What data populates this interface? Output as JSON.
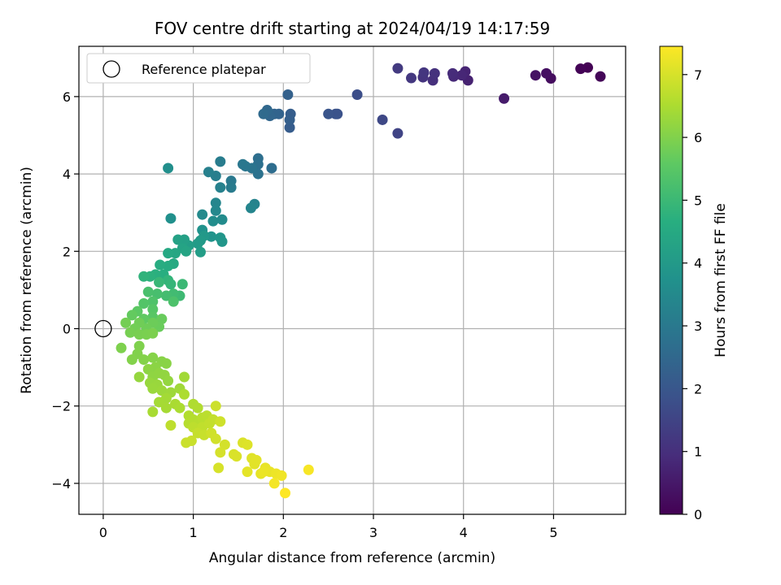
{
  "chart_data": {
    "type": "scatter",
    "title": "FOV centre drift starting at 2024/04/19 14:17:59",
    "xlabel": "Angular distance from reference (arcmin)",
    "ylabel": "Rotation from reference (arcmin)",
    "xlim": [
      -0.27,
      5.8
    ],
    "ylim": [
      -4.8,
      7.3
    ],
    "xticks": [
      0,
      1,
      2,
      3,
      4,
      5
    ],
    "yticks": [
      -4,
      -2,
      0,
      2,
      4,
      6
    ],
    "grid": true,
    "legend": {
      "position": "top-left",
      "label": "Reference platepar"
    },
    "reference_point": {
      "x": 0,
      "y": 0
    },
    "colorbar": {
      "label": "Hours from first FF file",
      "range": [
        0,
        7.45
      ],
      "ticks": [
        0,
        1,
        2,
        3,
        4,
        5,
        6,
        7
      ],
      "colormap": "viridis"
    },
    "series": [
      {
        "points": [
          [
            5.38,
            6.75,
            0.0
          ],
          [
            5.3,
            6.72,
            0.05
          ],
          [
            5.52,
            6.52,
            0.1
          ],
          [
            4.97,
            6.47,
            0.25
          ],
          [
            4.92,
            6.6,
            0.3
          ],
          [
            4.8,
            6.55,
            0.35
          ],
          [
            4.45,
            5.95,
            0.55
          ],
          [
            4.05,
            6.42,
            0.7
          ],
          [
            4.02,
            6.65,
            0.75
          ],
          [
            3.98,
            6.55,
            0.8
          ],
          [
            3.89,
            6.52,
            0.85
          ],
          [
            3.88,
            6.6,
            0.9
          ],
          [
            3.66,
            6.42,
            1.0
          ],
          [
            3.68,
            6.6,
            1.05
          ],
          [
            3.55,
            6.5,
            1.1
          ],
          [
            3.56,
            6.62,
            1.15
          ],
          [
            3.42,
            6.48,
            1.2
          ],
          [
            3.27,
            6.73,
            1.25
          ],
          [
            3.27,
            5.05,
            1.5
          ],
          [
            3.1,
            5.4,
            1.6
          ],
          [
            2.82,
            6.05,
            1.75
          ],
          [
            2.6,
            5.55,
            1.85
          ],
          [
            2.58,
            5.55,
            1.9
          ],
          [
            2.5,
            5.55,
            1.95
          ],
          [
            2.07,
            5.2,
            2.15
          ],
          [
            2.08,
            5.55,
            2.2
          ],
          [
            2.07,
            5.4,
            2.25
          ],
          [
            2.05,
            6.05,
            2.3
          ],
          [
            1.95,
            5.55,
            2.35
          ],
          [
            1.9,
            5.55,
            2.4
          ],
          [
            1.85,
            5.5,
            2.45
          ],
          [
            1.82,
            5.65,
            2.5
          ],
          [
            1.78,
            5.55,
            2.55
          ],
          [
            1.87,
            4.15,
            2.65
          ],
          [
            1.72,
            4.4,
            2.7
          ],
          [
            1.72,
            4.25,
            2.75
          ],
          [
            1.72,
            4.0,
            2.8
          ],
          [
            1.65,
            4.15,
            2.85
          ],
          [
            1.58,
            4.2,
            2.9
          ],
          [
            1.55,
            4.25,
            2.95
          ],
          [
            1.42,
            3.82,
            3.0
          ],
          [
            1.42,
            3.65,
            3.05
          ],
          [
            1.3,
            4.32,
            3.1
          ],
          [
            1.25,
            3.95,
            3.15
          ],
          [
            1.17,
            4.05,
            3.2
          ],
          [
            1.3,
            3.65,
            3.25
          ],
          [
            1.68,
            3.22,
            3.3
          ],
          [
            1.64,
            3.12,
            3.35
          ],
          [
            1.25,
            3.25,
            3.4
          ],
          [
            1.25,
            3.05,
            3.45
          ],
          [
            1.1,
            2.95,
            3.5
          ],
          [
            1.32,
            2.82,
            3.55
          ],
          [
            1.22,
            2.78,
            3.6
          ],
          [
            0.72,
            4.15,
            3.65
          ],
          [
            0.75,
            2.85,
            3.7
          ],
          [
            1.1,
            2.55,
            3.75
          ],
          [
            1.2,
            2.38,
            3.8
          ],
          [
            1.3,
            2.35,
            3.85
          ],
          [
            1.32,
            2.25,
            3.9
          ],
          [
            1.12,
            2.4,
            3.95
          ],
          [
            1.08,
            2.28,
            4.0
          ],
          [
            1.05,
            2.2,
            4.05
          ],
          [
            1.08,
            1.98,
            4.1
          ],
          [
            0.95,
            2.15,
            4.15
          ],
          [
            0.9,
            2.3,
            4.2
          ],
          [
            0.83,
            2.3,
            4.25
          ],
          [
            0.88,
            2.08,
            4.3
          ],
          [
            0.92,
            2.0,
            4.35
          ],
          [
            0.8,
            1.95,
            4.4
          ],
          [
            0.72,
            1.95,
            4.45
          ],
          [
            0.78,
            1.68,
            4.5
          ],
          [
            0.72,
            1.62,
            4.55
          ],
          [
            0.63,
            1.65,
            4.6
          ],
          [
            0.67,
            1.4,
            4.65
          ],
          [
            0.58,
            1.4,
            4.7
          ],
          [
            0.52,
            1.35,
            4.75
          ],
          [
            0.45,
            1.35,
            4.8
          ],
          [
            0.72,
            1.25,
            4.85
          ],
          [
            0.75,
            1.15,
            4.9
          ],
          [
            0.62,
            1.2,
            4.95
          ],
          [
            0.88,
            1.15,
            5.0
          ],
          [
            0.85,
            0.85,
            5.05
          ],
          [
            0.78,
            0.9,
            5.1
          ],
          [
            0.7,
            0.85,
            5.15
          ],
          [
            0.6,
            0.9,
            5.2
          ],
          [
            0.5,
            0.95,
            5.25
          ],
          [
            0.78,
            0.7,
            5.3
          ],
          [
            0.55,
            0.7,
            5.35
          ],
          [
            0.45,
            0.65,
            5.4
          ],
          [
            0.55,
            0.5,
            5.45
          ],
          [
            0.55,
            0.3,
            5.5
          ],
          [
            0.38,
            0.45,
            5.55
          ],
          [
            0.45,
            0.25,
            5.6
          ],
          [
            0.32,
            0.35,
            5.65
          ],
          [
            0.65,
            0.25,
            5.7
          ],
          [
            0.62,
            0.05,
            5.72
          ],
          [
            0.55,
            0.15,
            5.75
          ],
          [
            0.48,
            0.0,
            5.78
          ],
          [
            0.4,
            0.15,
            5.8
          ],
          [
            0.35,
            0.0,
            5.82
          ],
          [
            0.25,
            0.15,
            5.85
          ],
          [
            0.3,
            -0.1,
            5.88
          ],
          [
            0.4,
            -0.15,
            5.9
          ],
          [
            0.48,
            -0.15,
            5.92
          ],
          [
            0.55,
            -0.12,
            5.94
          ],
          [
            0.2,
            -0.5,
            5.96
          ],
          [
            0.4,
            -0.45,
            5.98
          ],
          [
            0.38,
            -0.65,
            6.0
          ],
          [
            0.32,
            -0.8,
            6.02
          ],
          [
            0.45,
            -0.8,
            6.04
          ],
          [
            0.55,
            -0.75,
            6.06
          ],
          [
            0.65,
            -0.85,
            6.08
          ],
          [
            0.7,
            -0.9,
            6.1
          ],
          [
            0.58,
            -1.0,
            6.12
          ],
          [
            0.5,
            -1.05,
            6.14
          ],
          [
            0.55,
            -1.25,
            6.16
          ],
          [
            0.62,
            -1.15,
            6.18
          ],
          [
            0.68,
            -1.2,
            6.2
          ],
          [
            0.72,
            -1.35,
            6.22
          ],
          [
            0.4,
            -1.25,
            6.24
          ],
          [
            0.52,
            -1.4,
            6.26
          ],
          [
            0.6,
            -1.45,
            6.28
          ],
          [
            0.55,
            -1.55,
            6.3
          ],
          [
            0.65,
            -1.6,
            6.32
          ],
          [
            0.75,
            -1.65,
            6.34
          ],
          [
            0.85,
            -1.55,
            6.36
          ],
          [
            0.9,
            -1.25,
            6.38
          ],
          [
            0.7,
            -1.8,
            6.4
          ],
          [
            0.62,
            -1.9,
            6.42
          ],
          [
            0.7,
            -2.05,
            6.44
          ],
          [
            0.55,
            -2.15,
            6.46
          ],
          [
            0.8,
            -1.95,
            6.48
          ],
          [
            0.85,
            -2.05,
            6.5
          ],
          [
            0.9,
            -1.7,
            6.52
          ],
          [
            1.0,
            -1.95,
            6.54
          ],
          [
            1.05,
            -2.05,
            6.56
          ],
          [
            0.95,
            -2.25,
            6.58
          ],
          [
            1.0,
            -2.35,
            6.6
          ],
          [
            0.95,
            -2.45,
            6.62
          ],
          [
            1.05,
            -2.45,
            6.64
          ],
          [
            1.1,
            -2.3,
            6.66
          ],
          [
            1.15,
            -2.25,
            6.68
          ],
          [
            1.0,
            -2.55,
            6.7
          ],
          [
            0.75,
            -2.5,
            6.72
          ],
          [
            1.1,
            -2.55,
            6.74
          ],
          [
            1.18,
            -2.45,
            6.76
          ],
          [
            1.22,
            -2.35,
            6.78
          ],
          [
            1.05,
            -2.7,
            6.8
          ],
          [
            1.12,
            -2.75,
            6.82
          ],
          [
            0.98,
            -2.9,
            6.84
          ],
          [
            0.92,
            -2.95,
            6.86
          ],
          [
            1.25,
            -2.0,
            6.88
          ],
          [
            1.3,
            -2.4,
            6.9
          ],
          [
            1.2,
            -2.7,
            6.92
          ],
          [
            1.25,
            -2.85,
            6.94
          ],
          [
            1.35,
            -3.0,
            6.96
          ],
          [
            1.3,
            -3.2,
            6.98
          ],
          [
            1.28,
            -3.6,
            7.0
          ],
          [
            1.45,
            -3.25,
            7.02
          ],
          [
            1.48,
            -3.3,
            7.04
          ],
          [
            1.55,
            -2.95,
            7.06
          ],
          [
            1.6,
            -3.0,
            7.08
          ],
          [
            1.65,
            -3.35,
            7.1
          ],
          [
            1.68,
            -3.5,
            7.12
          ],
          [
            1.7,
            -3.4,
            7.14
          ],
          [
            1.6,
            -3.7,
            7.16
          ],
          [
            1.75,
            -3.75,
            7.18
          ],
          [
            1.8,
            -3.6,
            7.2
          ],
          [
            1.85,
            -3.7,
            7.22
          ],
          [
            1.78,
            -3.7,
            7.24
          ],
          [
            1.92,
            -3.75,
            7.26
          ],
          [
            1.98,
            -3.8,
            7.3
          ],
          [
            1.9,
            -4.0,
            7.34
          ],
          [
            2.28,
            -3.65,
            7.38
          ],
          [
            2.02,
            -4.25,
            7.45
          ]
        ]
      }
    ]
  }
}
